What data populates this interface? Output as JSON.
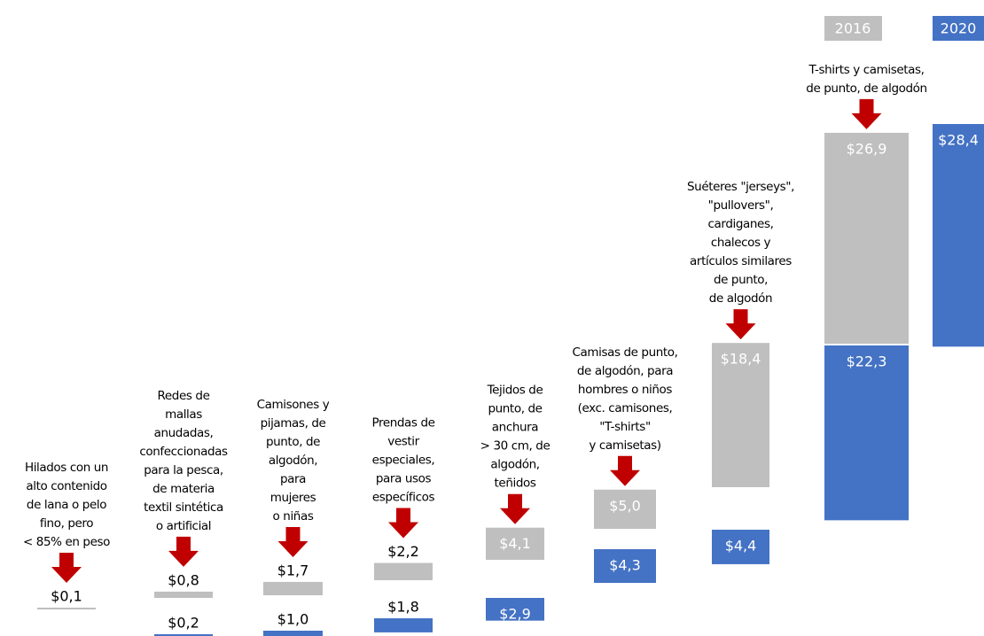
{
  "chart_data": {
    "type": "bar",
    "categories": [
      [
        "Hilados con un",
        "alto contenido",
        "de lana o pelo",
        "fino, pero",
        "< 85% en peso"
      ],
      [
        "Redes de",
        "mallas",
        "anudadas,",
        "confeccionadas",
        "para la pesca,",
        "de materia",
        "textil sintética",
        "o artificial"
      ],
      [
        "Camisones y",
        "pijamas, de",
        "punto, de",
        "algodón,",
        "para",
        "mujeres",
        "o niñas"
      ],
      [
        "Prendas de",
        "vestir",
        "especiales,",
        "para usos",
        "específicos"
      ],
      [
        "Tejidos de",
        "punto, de",
        "anchura",
        "> 30 cm, de",
        "algodón,",
        "teñidos"
      ],
      [
        "Camisas de punto,",
        "de algodón, para",
        "hombres o niños",
        "(exc. camisones,",
        "\"T-shirts\"",
        "y camisetas)"
      ],
      [
        "Suéteres \"jerseys\",",
        "\"pullovers\",",
        "cardiganes,",
        "chalecos y",
        "artículos similares",
        "de punto,",
        "de algodón"
      ],
      [
        "T-shirts y camisetas,",
        "de punto, de algodón"
      ]
    ],
    "series": [
      {
        "name": "2016",
        "color": "#bfbfbf",
        "values": [
          0.1,
          0.8,
          1.7,
          2.2,
          4.1,
          5.0,
          18.4,
          26.9
        ],
        "value_labels": [
          "$0,1",
          "$0,8",
          "$1,7",
          "$2,2",
          "$4,1",
          "$5,0",
          "$18,4",
          "$26,9"
        ]
      },
      {
        "name": "2020",
        "color": "#4472c4",
        "values": [
          0.2,
          1.0,
          1.8,
          2.9,
          4.3,
          4.4,
          22.3,
          28.4
        ],
        "value_labels": [
          "$0,2",
          "$1,0",
          "$1,8",
          "$2,9",
          "$4,3",
          "$4,4",
          "$22,3",
          "$28,4"
        ]
      }
    ]
  }
}
